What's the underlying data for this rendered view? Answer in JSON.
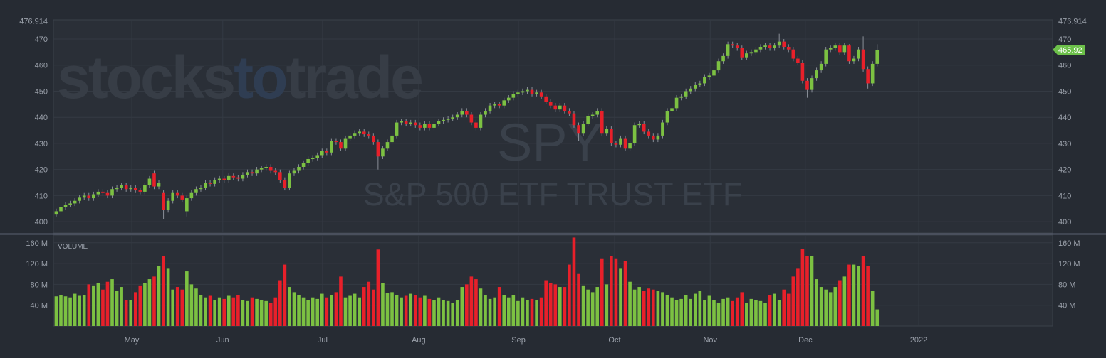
{
  "chart_data": [
    {
      "type": "candlestick",
      "watermark": [
        "stocks",
        "to",
        "trade"
      ],
      "symbol": "SPY",
      "name": "S&P 500 ETF TRUST ETF",
      "up_color": "#7cc142",
      "down_color": "#e8202a",
      "tag_color": "#6cc04a",
      "grid": true,
      "xlim": [
        -0.6,
        213.6
      ],
      "xticks": [
        {
          "value": 16.2,
          "label": "May"
        },
        {
          "value": 35.7,
          "label": "Jun"
        },
        {
          "value": 57.1,
          "label": "Jul"
        },
        {
          "value": 77.7,
          "label": "Aug"
        },
        {
          "value": 99.1,
          "label": "Sep"
        },
        {
          "value": 119.7,
          "label": "Oct"
        },
        {
          "value": 140.2,
          "label": "Nov"
        },
        {
          "value": 160.6,
          "label": "Dec"
        },
        {
          "value": 184.9,
          "label": "2022"
        }
      ],
      "ylim": [
        395.6,
        476.914
      ],
      "yticks": [
        400,
        410,
        420,
        430,
        440,
        450,
        460,
        470,
        476.914
      ],
      "open": [
        403.0,
        404.0,
        405.5,
        406.5,
        407.0,
        408.0,
        409.2,
        410.0,
        409.0,
        410.5,
        411.5,
        411.0,
        410.0,
        412.5,
        413.0,
        414.0,
        412.5,
        413.0,
        412.0,
        411.5,
        414.0,
        418.5,
        413.5,
        411.0,
        404.5,
        408.0,
        411.0,
        410.0,
        404.0,
        409.0,
        411.0,
        412.5,
        413.0,
        415.0,
        414.5,
        416.0,
        416.5,
        416.0,
        417.5,
        417.0,
        416.5,
        418.0,
        419.0,
        418.5,
        420.0,
        420.5,
        421.0,
        419.5,
        419.0,
        416.0,
        413.0,
        418.5,
        419.5,
        421.0,
        422.5,
        424.0,
        424.5,
        425.5,
        427.0,
        426.5,
        431.0,
        430.5,
        428.0,
        432.0,
        433.0,
        434.0,
        434.5,
        433.5,
        433.0,
        430.5,
        425.0,
        428.0,
        430.5,
        433.0,
        438.0,
        438.5,
        437.5,
        438.0,
        437.0,
        436.0,
        437.5,
        436.0,
        437.5,
        438.5,
        439.0,
        439.5,
        440.0,
        441.0,
        442.5,
        441.0,
        438.0,
        436.0,
        441.0,
        442.5,
        444.5,
        445.0,
        444.5,
        446.5,
        447.5,
        449.0,
        449.5,
        450.0,
        450.5,
        449.0,
        449.5,
        448.0,
        446.0,
        444.5,
        443.0,
        444.5,
        442.5,
        441.5,
        437.0,
        434.0,
        437.5,
        440.5,
        441.0,
        442.5,
        434.0,
        435.5,
        430.0,
        429.5,
        432.0,
        428.0,
        430.0,
        437.0,
        437.5,
        434.5,
        433.0,
        431.5,
        433.0,
        438.0,
        442.5,
        443.5,
        447.5,
        448.0,
        450.0,
        451.0,
        452.5,
        453.0,
        455.5,
        456.0,
        458.0,
        461.5,
        463.5,
        468.0,
        467.5,
        466.5,
        463.0,
        464.5,
        465.0,
        466.0,
        467.0,
        467.5,
        466.5,
        467.5,
        469.0,
        467.0,
        466.0,
        462.5,
        461.0,
        454.0,
        450.5,
        455.0,
        458.0,
        460.5,
        466.0,
        466.5,
        467.5,
        465.0,
        467.5,
        461.5,
        462.5,
        466.0,
        458.5,
        453.0,
        460.5
      ],
      "high": [
        405.0,
        406.5,
        407.5,
        408.0,
        409.0,
        410.2,
        411.0,
        411.0,
        411.5,
        412.5,
        412.5,
        412.0,
        413.5,
        414.0,
        415.0,
        415.0,
        414.0,
        414.0,
        413.0,
        415.0,
        417.5,
        419.5,
        416.0,
        412.0,
        409.0,
        412.0,
        412.0,
        411.0,
        410.0,
        412.0,
        413.5,
        414.0,
        416.0,
        416.0,
        417.0,
        417.5,
        417.5,
        418.5,
        418.5,
        418.0,
        419.0,
        420.0,
        420.0,
        421.0,
        421.5,
        422.0,
        422.0,
        420.5,
        420.0,
        417.0,
        419.5,
        420.5,
        422.0,
        423.5,
        425.0,
        425.5,
        426.5,
        428.0,
        428.0,
        432.0,
        432.0,
        431.5,
        433.0,
        434.0,
        435.0,
        435.5,
        435.5,
        434.5,
        434.0,
        431.5,
        429.0,
        431.5,
        434.0,
        439.0,
        439.5,
        439.5,
        439.0,
        439.0,
        438.0,
        438.5,
        438.5,
        438.5,
        439.5,
        440.0,
        440.5,
        441.0,
        442.0,
        443.5,
        443.5,
        442.0,
        439.0,
        442.0,
        443.5,
        445.5,
        446.0,
        446.0,
        447.5,
        448.5,
        450.0,
        450.5,
        451.0,
        451.5,
        451.5,
        450.5,
        450.5,
        449.0,
        447.0,
        445.5,
        445.5,
        445.5,
        443.5,
        442.5,
        438.0,
        438.5,
        441.5,
        442.0,
        443.5,
        443.5,
        436.5,
        436.5,
        431.0,
        433.0,
        433.0,
        431.0,
        438.0,
        438.5,
        438.5,
        435.5,
        434.0,
        434.0,
        439.0,
        443.5,
        444.5,
        448.5,
        449.0,
        451.0,
        452.0,
        453.5,
        454.0,
        456.5,
        457.0,
        459.0,
        462.5,
        464.5,
        469.0,
        469.0,
        468.5,
        467.5,
        465.5,
        466.0,
        467.0,
        468.0,
        468.5,
        468.5,
        468.5,
        472.0,
        470.0,
        468.0,
        467.0,
        463.5,
        462.0,
        455.0,
        456.0,
        459.0,
        461.5,
        467.0,
        467.5,
        468.5,
        468.5,
        468.5,
        468.0,
        463.5,
        467.0,
        471.0,
        459.5,
        461.5,
        468.0
      ],
      "low": [
        402.0,
        403.0,
        404.5,
        405.5,
        406.0,
        407.0,
        408.2,
        408.0,
        408.0,
        409.5,
        410.0,
        409.0,
        409.0,
        411.5,
        412.0,
        411.5,
        411.5,
        411.0,
        410.5,
        410.5,
        413.0,
        412.5,
        412.5,
        401.0,
        403.5,
        407.0,
        409.0,
        407.5,
        402.0,
        408.0,
        410.0,
        411.5,
        412.0,
        413.5,
        413.5,
        415.0,
        415.0,
        415.0,
        416.0,
        415.5,
        415.5,
        417.0,
        417.5,
        417.5,
        419.0,
        419.5,
        418.5,
        418.0,
        415.0,
        412.0,
        412.0,
        417.5,
        418.5,
        420.0,
        421.5,
        423.0,
        423.5,
        424.5,
        425.5,
        425.5,
        429.5,
        427.0,
        427.0,
        431.0,
        432.0,
        433.0,
        432.5,
        432.0,
        429.5,
        420.0,
        424.0,
        427.0,
        429.5,
        432.0,
        437.0,
        436.5,
        436.5,
        436.0,
        435.0,
        435.0,
        435.0,
        435.0,
        436.5,
        437.5,
        438.0,
        438.5,
        439.0,
        440.0,
        440.0,
        437.0,
        435.0,
        435.0,
        440.0,
        441.5,
        443.5,
        443.5,
        443.5,
        445.5,
        446.5,
        448.0,
        448.5,
        449.0,
        448.0,
        448.0,
        447.0,
        445.0,
        443.5,
        442.0,
        442.0,
        441.5,
        440.5,
        436.0,
        431.0,
        433.0,
        436.5,
        439.5,
        440.0,
        433.0,
        433.0,
        429.0,
        428.5,
        428.5,
        427.0,
        427.0,
        429.0,
        436.0,
        433.5,
        432.0,
        430.5,
        430.5,
        432.0,
        437.0,
        441.5,
        442.5,
        446.5,
        447.0,
        449.0,
        450.0,
        451.5,
        452.0,
        454.5,
        455.0,
        457.0,
        460.5,
        462.5,
        466.5,
        465.5,
        462.0,
        462.0,
        463.5,
        464.0,
        465.0,
        466.0,
        465.5,
        465.5,
        466.5,
        466.0,
        465.0,
        461.5,
        460.0,
        453.0,
        447.5,
        449.5,
        454.0,
        457.0,
        459.5,
        465.0,
        465.5,
        464.0,
        464.0,
        460.5,
        460.5,
        461.5,
        457.5,
        451.0,
        452.0,
        459.5
      ],
      "close": [
        404.0,
        405.5,
        406.5,
        407.0,
        408.0,
        409.2,
        410.0,
        409.0,
        410.5,
        411.5,
        411.0,
        410.0,
        412.5,
        413.0,
        414.0,
        412.5,
        413.0,
        412.0,
        411.5,
        414.0,
        416.5,
        413.5,
        415.0,
        404.5,
        408.0,
        411.0,
        410.0,
        408.5,
        409.0,
        411.0,
        412.5,
        413.0,
        415.0,
        414.5,
        416.0,
        416.5,
        416.0,
        417.5,
        417.0,
        416.5,
        418.0,
        419.0,
        418.5,
        420.0,
        420.5,
        421.0,
        419.5,
        419.0,
        416.0,
        413.0,
        418.5,
        419.5,
        421.0,
        422.5,
        424.0,
        424.5,
        425.5,
        427.0,
        426.5,
        431.0,
        430.5,
        428.0,
        432.0,
        433.0,
        434.0,
        434.5,
        433.5,
        433.0,
        430.5,
        425.0,
        428.0,
        430.5,
        433.0,
        438.0,
        438.5,
        437.5,
        438.0,
        437.0,
        436.0,
        437.5,
        436.0,
        437.5,
        438.5,
        439.0,
        439.5,
        440.0,
        441.0,
        442.5,
        441.0,
        438.0,
        436.0,
        441.0,
        442.5,
        444.5,
        445.0,
        444.5,
        446.5,
        447.5,
        449.0,
        449.5,
        450.0,
        450.5,
        449.0,
        449.5,
        448.0,
        446.0,
        444.5,
        443.0,
        444.5,
        442.5,
        441.5,
        437.0,
        434.0,
        437.5,
        440.5,
        441.0,
        442.5,
        434.0,
        435.5,
        430.0,
        429.5,
        432.0,
        428.0,
        430.0,
        437.0,
        437.5,
        434.5,
        433.0,
        431.5,
        433.0,
        438.0,
        442.5,
        443.5,
        447.5,
        448.0,
        450.0,
        451.0,
        452.5,
        453.0,
        455.5,
        456.0,
        458.0,
        461.5,
        463.5,
        468.0,
        467.5,
        466.5,
        463.0,
        464.5,
        465.0,
        466.0,
        467.0,
        467.5,
        466.5,
        467.5,
        469.0,
        467.0,
        466.0,
        462.5,
        461.0,
        454.0,
        450.5,
        455.0,
        458.0,
        460.5,
        466.0,
        466.5,
        467.5,
        465.0,
        467.5,
        461.5,
        462.5,
        466.0,
        458.5,
        453.0,
        460.5,
        465.92
      ]
    },
    {
      "type": "bar",
      "label": "VOLUME",
      "ylim": [
        0,
        174.7
      ],
      "yticks": [
        {
          "value": 40,
          "label": "40 M"
        },
        {
          "value": 80,
          "label": "80 M"
        },
        {
          "value": 120,
          "label": "120 M"
        },
        {
          "value": 160,
          "label": "160 M"
        }
      ],
      "values": [
        57,
        60,
        57,
        55,
        62,
        58,
        60,
        80,
        78,
        82,
        70,
        85,
        90,
        68,
        75,
        50,
        50,
        65,
        78,
        82,
        90,
        95,
        115,
        135,
        110,
        70,
        75,
        70,
        105,
        80,
        72,
        60,
        55,
        58,
        50,
        55,
        52,
        58,
        55,
        60,
        50,
        48,
        55,
        52,
        50,
        48,
        45,
        55,
        88,
        118,
        75,
        65,
        60,
        55,
        50,
        55,
        52,
        62,
        55,
        60,
        65,
        95,
        55,
        58,
        62,
        55,
        75,
        85,
        70,
        147,
        82,
        63,
        65,
        60,
        55,
        58,
        62,
        60,
        55,
        58,
        52,
        50,
        55,
        50,
        48,
        45,
        50,
        75,
        80,
        95,
        90,
        72,
        60,
        52,
        55,
        75,
        60,
        55,
        60,
        48,
        55,
        50,
        52,
        50,
        55,
        88,
        82,
        80,
        75,
        75,
        118,
        170,
        100,
        78,
        70,
        65,
        75,
        130,
        80,
        135,
        130,
        110,
        125,
        85,
        70,
        75,
        68,
        72,
        70,
        68,
        65,
        60,
        55,
        50,
        52,
        60,
        52,
        62,
        68,
        50,
        58,
        50,
        45,
        52,
        55,
        48,
        55,
        65,
        45,
        52,
        50,
        48,
        45,
        60,
        62,
        50,
        70,
        62,
        95,
        110,
        148,
        135,
        135,
        90,
        75,
        70,
        65,
        75,
        88,
        95,
        118,
        118,
        115,
        135,
        115,
        68,
        32
      ]
    }
  ]
}
